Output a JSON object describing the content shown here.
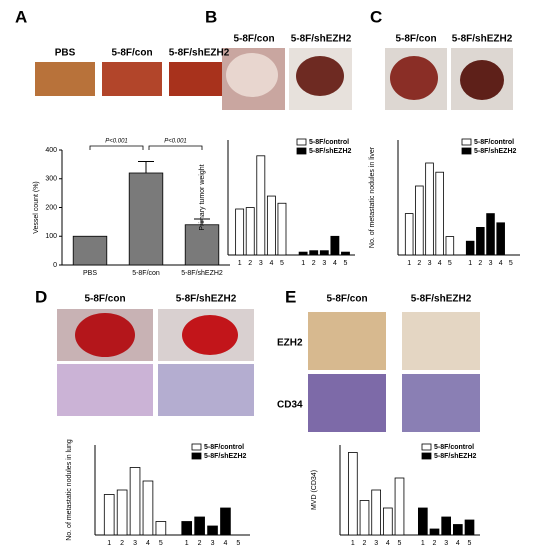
{
  "panels": [
    {
      "letter": "A",
      "labels": [
        "PBS",
        "5-8F/con",
        "5-8F/shEZH2"
      ]
    },
    {
      "letter": "B",
      "labels": [
        "5-8F/con",
        "5-8F/shEZH2"
      ]
    },
    {
      "letter": "C",
      "labels": [
        "5-8F/con",
        "5-8F/shEZH2"
      ]
    },
    {
      "letter": "D",
      "labels": [
        "5-8F/con",
        "5-8F/shEZH2"
      ]
    },
    {
      "letter": "E",
      "labels": [
        "5-8F/con",
        "5-8F/shEZH2"
      ],
      "rows": [
        "EZH2",
        "CD34"
      ]
    }
  ],
  "chart_data": [
    {
      "type": "bar",
      "ylabel": "Vessel count (%)",
      "categories": [
        "PBS",
        "5-8F/con",
        "5-8F/shEZH2"
      ],
      "values": [
        100,
        320,
        140
      ],
      "errors": [
        0,
        40,
        20
      ],
      "color": "#7a7a7a",
      "ylim": [
        0,
        400
      ],
      "yticks": [
        0,
        100,
        200,
        300,
        400
      ],
      "annotations": [
        "P<0.001",
        "P<0.001"
      ]
    },
    {
      "type": "bar",
      "ylabel": "Primary tumor weight",
      "categories": [
        "1",
        "2",
        "3",
        "4",
        "5"
      ],
      "series": [
        {
          "name": "5-8F/control",
          "color": "#ffffff",
          "values": [
            320,
            330,
            690,
            410,
            360
          ]
        },
        {
          "name": "5-8F/shEZH2",
          "color": "#000000",
          "values": [
            20,
            30,
            30,
            130,
            20
          ]
        }
      ],
      "ylim": [
        0,
        800
      ]
    },
    {
      "type": "bar",
      "ylabel": "No. of metastatic nodules in liver",
      "categories": [
        "1",
        "2",
        "3",
        "4",
        "5"
      ],
      "series": [
        {
          "name": "5-8F/control",
          "color": "#ffffff",
          "values": [
            9,
            15,
            20,
            18,
            4
          ]
        },
        {
          "name": "5-8F/shEZH2",
          "color": "#000000",
          "values": [
            3,
            6,
            9,
            7,
            0
          ]
        }
      ],
      "ylim": [
        0,
        25
      ]
    },
    {
      "type": "bar",
      "ylabel": "No. of metastatic nodules in lung",
      "categories": [
        "1",
        "2",
        "3",
        "4",
        "5"
      ],
      "series": [
        {
          "name": "5-8F/control",
          "color": "#ffffff",
          "values": [
            9,
            10,
            15,
            12,
            3
          ]
        },
        {
          "name": "5-8F/shEZH2",
          "color": "#000000",
          "values": [
            3,
            4,
            2,
            6,
            0
          ]
        }
      ],
      "ylim": [
        0,
        20
      ]
    },
    {
      "type": "bar",
      "ylabel": "MVD (CD34)",
      "categories": [
        "1",
        "2",
        "3",
        "4",
        "5"
      ],
      "series": [
        {
          "name": "5-8F/control",
          "color": "#ffffff",
          "values": [
            55,
            23,
            30,
            18,
            38
          ]
        },
        {
          "name": "5-8F/shEZH2",
          "color": "#000000",
          "values": [
            18,
            4,
            12,
            7,
            10
          ]
        }
      ],
      "ylim": [
        0,
        60
      ]
    }
  ]
}
